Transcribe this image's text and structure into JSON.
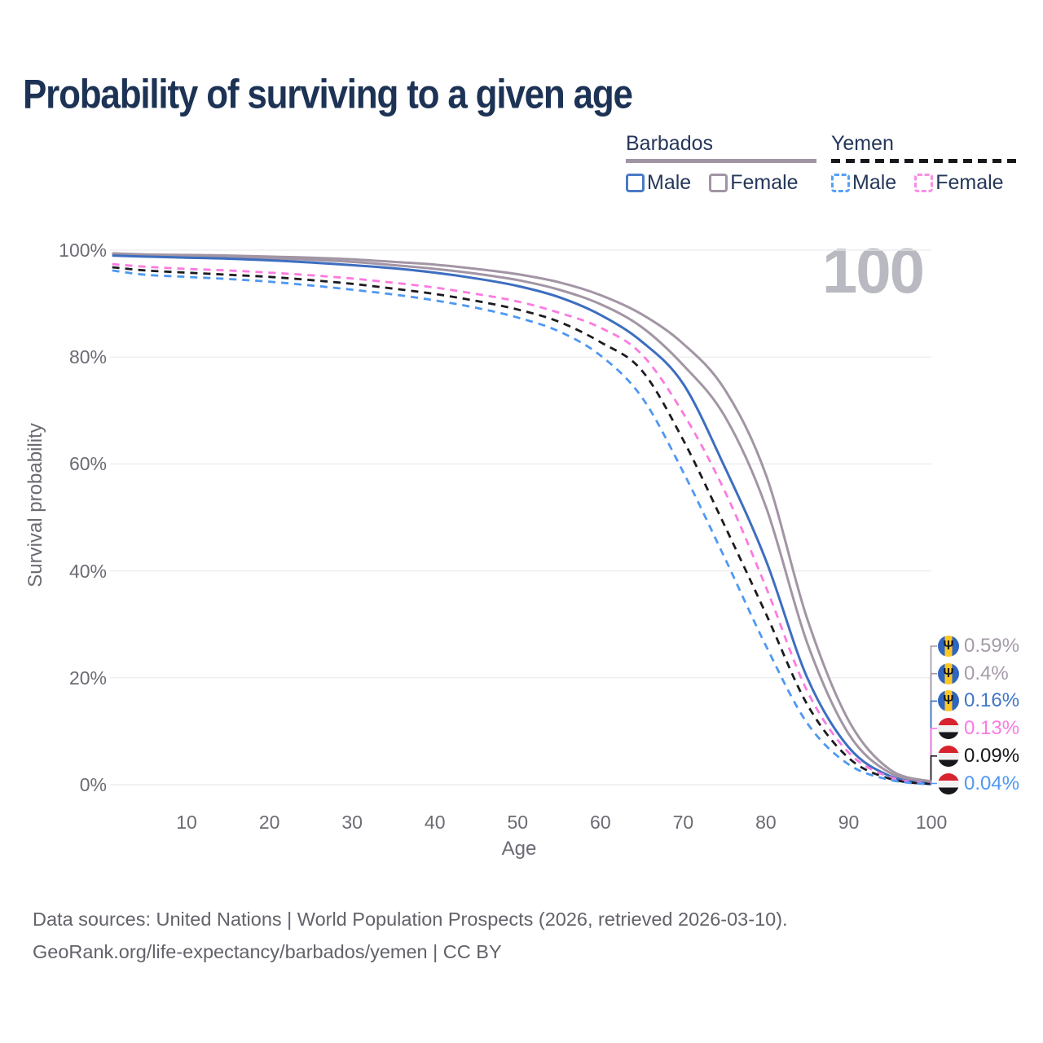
{
  "page": {
    "title": "Probability of surviving to a given age"
  },
  "legend": {
    "groups": [
      {
        "name": "Barbados",
        "line_style": "solid",
        "line_color": "#a095a3",
        "items": [
          {
            "label": "Male",
            "color": "#4a7ac7",
            "dashed": false
          },
          {
            "label": "Female",
            "color": "#a095a3",
            "dashed": false
          }
        ]
      },
      {
        "name": "Yemen",
        "line_style": "dashed",
        "line_color": "#17171c",
        "items": [
          {
            "label": "Male",
            "color": "#55a0f8",
            "dashed": true
          },
          {
            "label": "Female",
            "color": "#fb8ce6",
            "dashed": true
          }
        ]
      }
    ]
  },
  "watermark": "100",
  "chart_data": {
    "type": "line",
    "title": "Probability of surviving to a given age",
    "xlabel": "Age",
    "ylabel": "Survival probability",
    "xlim": [
      0,
      100
    ],
    "ylim": [
      0,
      100
    ],
    "grid": "horizontal",
    "x_ticks": [
      10,
      20,
      30,
      40,
      50,
      60,
      70,
      80,
      90,
      100
    ],
    "y_ticks_percent": [
      0,
      20,
      40,
      60,
      80,
      100
    ],
    "y_tick_labels": [
      "0%",
      "20%",
      "40%",
      "60%",
      "80%",
      "100%"
    ],
    "ages": [
      0,
      5,
      10,
      15,
      20,
      25,
      30,
      35,
      40,
      45,
      50,
      55,
      60,
      65,
      70,
      75,
      80,
      85,
      90,
      95,
      100
    ],
    "series": [
      {
        "name": "Barbados Female",
        "country": "Barbados",
        "sex": "Female",
        "style": "solid",
        "color": "#a295a4",
        "end_label": "0.59%",
        "values": [
          99.4,
          99.2,
          99.1,
          99.0,
          98.8,
          98.6,
          98.3,
          97.8,
          97.3,
          96.5,
          95.5,
          94.0,
          91.6,
          88.0,
          82.5,
          74.0,
          58.0,
          31.0,
          12.0,
          2.8,
          0.59
        ]
      },
      {
        "name": "Barbados",
        "country": "Barbados",
        "sex": "Both",
        "style": "solid",
        "color": "#a295a4",
        "end_label": "0.4%",
        "values": [
          99.2,
          99.0,
          98.9,
          98.7,
          98.5,
          98.2,
          97.8,
          97.2,
          96.5,
          95.6,
          94.4,
          92.6,
          89.9,
          85.6,
          78.5,
          69.0,
          52.0,
          26.5,
          9.5,
          2.2,
          0.4
        ]
      },
      {
        "name": "Barbados Male",
        "country": "Barbados",
        "sex": "Male",
        "style": "solid",
        "color": "#3d6ec0",
        "end_label": "0.16%",
        "values": [
          99.0,
          98.8,
          98.6,
          98.4,
          98.1,
          97.7,
          97.2,
          96.6,
          95.8,
          94.7,
          93.3,
          91.2,
          87.9,
          82.9,
          75.0,
          59.5,
          42.0,
          20.0,
          7.0,
          1.6,
          0.16
        ]
      },
      {
        "name": "Yemen Female",
        "country": "Yemen",
        "sex": "Female",
        "style": "dashed",
        "color": "#fb7ae1",
        "end_label": "0.13%",
        "values": [
          97.4,
          96.9,
          96.5,
          96.2,
          95.8,
          95.3,
          94.7,
          93.9,
          93.0,
          91.8,
          90.4,
          88.3,
          85.5,
          80.5,
          69.5,
          55.0,
          37.0,
          17.5,
          6.0,
          1.4,
          0.13
        ]
      },
      {
        "name": "Yemen",
        "country": "Yemen",
        "sex": "Both",
        "style": "dashed",
        "color": "#1b1b20",
        "end_label": "0.09%",
        "values": [
          96.8,
          96.2,
          95.8,
          95.4,
          95.0,
          94.4,
          93.7,
          92.8,
          91.8,
          90.5,
          88.9,
          86.6,
          82.8,
          77.5,
          64.5,
          48.5,
          32.0,
          15.0,
          5.0,
          1.1,
          0.09
        ]
      },
      {
        "name": "Yemen Male",
        "country": "Yemen",
        "sex": "Male",
        "style": "dashed",
        "color": "#4f98f2",
        "end_label": "0.04%",
        "values": [
          96.2,
          95.4,
          95.0,
          94.6,
          94.1,
          93.4,
          92.6,
          91.7,
          90.6,
          89.2,
          87.4,
          84.8,
          80.3,
          72.5,
          58.5,
          42.5,
          26.0,
          11.5,
          3.8,
          0.9,
          0.04
        ]
      }
    ]
  },
  "end_labels": [
    {
      "text": "0.59%",
      "flag": "barbados",
      "color": "#a69ba9"
    },
    {
      "text": "0.4%",
      "flag": "barbados",
      "color": "#a69ba9"
    },
    {
      "text": "0.16%",
      "flag": "barbados",
      "color": "#4076c9"
    },
    {
      "text": "0.13%",
      "flag": "yemen",
      "color": "#fb7ae1"
    },
    {
      "text": "0.09%",
      "flag": "yemen",
      "color": "#17171c"
    },
    {
      "text": "0.04%",
      "flag": "yemen",
      "color": "#4f98f2"
    }
  ],
  "footer": {
    "line1": "Data sources: United Nations | World Population Prospects (2026, retrieved 2026-03-10).",
    "line2": "GeoRank.org/life-expectancy/barbados/yemen | CC BY"
  },
  "icons": {
    "barbados_trident": "Ψ"
  }
}
